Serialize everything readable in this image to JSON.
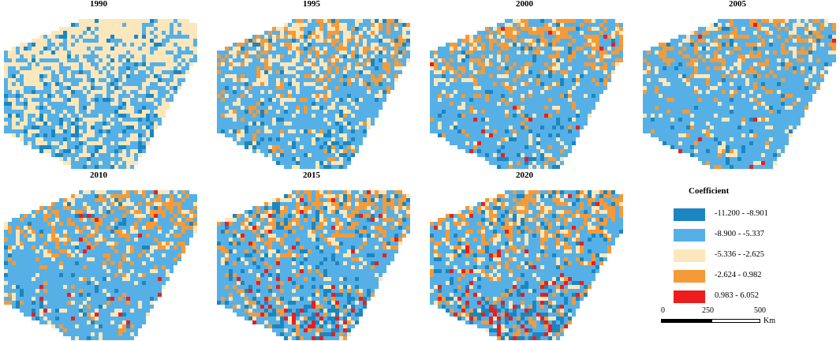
{
  "panels": [
    {
      "title": "1990"
    },
    {
      "title": "1995"
    },
    {
      "title": "2000"
    },
    {
      "title": "2005"
    },
    {
      "title": "2010"
    },
    {
      "title": "2015"
    },
    {
      "title": "2020"
    }
  ],
  "legend": {
    "title": "Coefficient",
    "items": [
      {
        "label": "-11.200 - -8.901",
        "color": "#1b86c0"
      },
      {
        "label": "-8.900 - -5.337",
        "color": "#56b0e6"
      },
      {
        "label": "-5.336 - -2.625",
        "color": "#fbe7bb"
      },
      {
        "label": "-2.624 - 0.982",
        "color": "#f59a38"
      },
      {
        "label": "0.983 - 6.052",
        "color": "#ee1c1c"
      }
    ]
  },
  "scalebar": {
    "ticks": [
      "0",
      "250",
      "500"
    ],
    "unit": "Km"
  }
}
